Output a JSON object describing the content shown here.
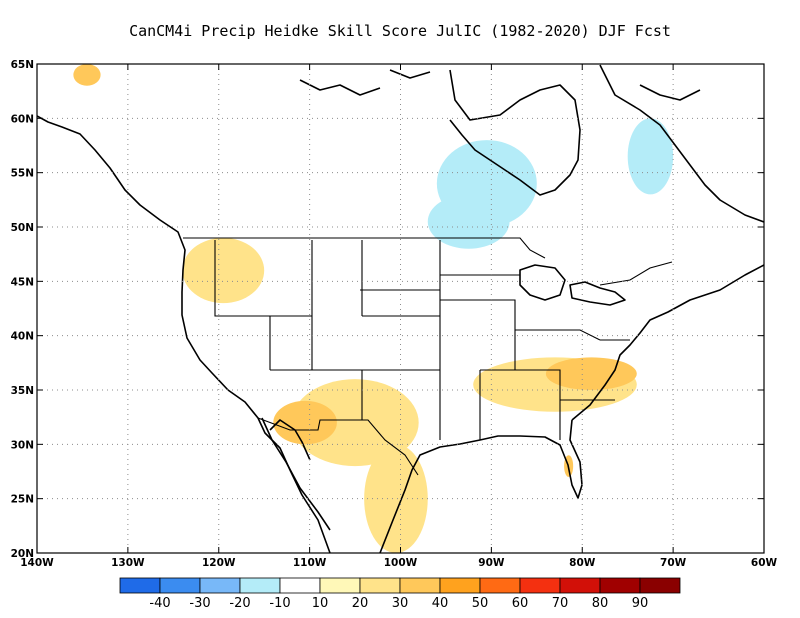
{
  "title": "CanCM4i Precip Heidke Skill Score JulIC (1982-2020) DJF Fcst",
  "map": {
    "lon_range": [
      -140,
      -60
    ],
    "lat_range": [
      20,
      65
    ],
    "grid": true,
    "lon_ticks": [
      {
        "value": -140,
        "label": "140W"
      },
      {
        "value": -130,
        "label": "130W"
      },
      {
        "value": -120,
        "label": "120W"
      },
      {
        "value": -110,
        "label": "110W"
      },
      {
        "value": -100,
        "label": "100W"
      },
      {
        "value": -90,
        "label": "90W"
      },
      {
        "value": -80,
        "label": "80W"
      },
      {
        "value": -70,
        "label": "70W"
      },
      {
        "value": -60,
        "label": "60W"
      }
    ],
    "lat_ticks": [
      {
        "value": 20,
        "label": "20N"
      },
      {
        "value": 25,
        "label": "25N"
      },
      {
        "value": 30,
        "label": "30N"
      },
      {
        "value": 35,
        "label": "35N"
      },
      {
        "value": 40,
        "label": "40N"
      },
      {
        "value": 45,
        "label": "45N"
      },
      {
        "value": 50,
        "label": "50N"
      },
      {
        "value": 55,
        "label": "55N"
      },
      {
        "value": 60,
        "label": "60N"
      },
      {
        "value": 65,
        "label": "65N"
      }
    ]
  },
  "colorbar": {
    "labels": [
      "-40",
      "-30",
      "-20",
      "-10",
      "10",
      "20",
      "30",
      "40",
      "50",
      "60",
      "70",
      "80",
      "90"
    ],
    "colors": [
      "#1f6be8",
      "#3b8cf0",
      "#78b8f8",
      "#b4ecf8",
      "#ffffff",
      "#fff8b8",
      "#ffe38a",
      "#ffc85a",
      "#ffa21e",
      "#ff6a14",
      "#f43010",
      "#d21008",
      "#a00000",
      "#8a0000"
    ]
  },
  "chart_data": {
    "type": "heatmap",
    "title": "CanCM4i Precip Heidke Skill Score JulIC (1982-2020) DJF Fcst",
    "x_range": [
      -140,
      -60
    ],
    "y_range": [
      20,
      65
    ],
    "levels": [
      -40,
      -30,
      -20,
      -10,
      10,
      20,
      30,
      40,
      50,
      60,
      70,
      80,
      90
    ],
    "regions": [
      {
        "lon": [
          -112,
          -98
        ],
        "lat": [
          28,
          36
        ],
        "value": 25
      },
      {
        "lon": [
          -114,
          -107
        ],
        "lat": [
          30,
          34
        ],
        "value": 35
      },
      {
        "lon": [
          -104,
          -97
        ],
        "lat": [
          20,
          30
        ],
        "value": 25
      },
      {
        "lon": [
          -92,
          -74
        ],
        "lat": [
          33,
          38
        ],
        "value": 20
      },
      {
        "lon": [
          -84,
          -74
        ],
        "lat": [
          35,
          38
        ],
        "value": 30
      },
      {
        "lon": [
          -82,
          -81
        ],
        "lat": [
          27,
          29
        ],
        "value": 35
      },
      {
        "lon": [
          -124,
          -115
        ],
        "lat": [
          43,
          49
        ],
        "value": 20
      },
      {
        "lon": [
          -136,
          -133
        ],
        "lat": [
          63,
          65
        ],
        "value": 30
      },
      {
        "lon": [
          -96,
          -85
        ],
        "lat": [
          50,
          58
        ],
        "value": -15
      },
      {
        "lon": [
          -75,
          -70
        ],
        "lat": [
          53,
          60
        ],
        "value": -15
      },
      {
        "lon": [
          -97,
          -88
        ],
        "lat": [
          48,
          53
        ],
        "value": -15
      }
    ]
  }
}
